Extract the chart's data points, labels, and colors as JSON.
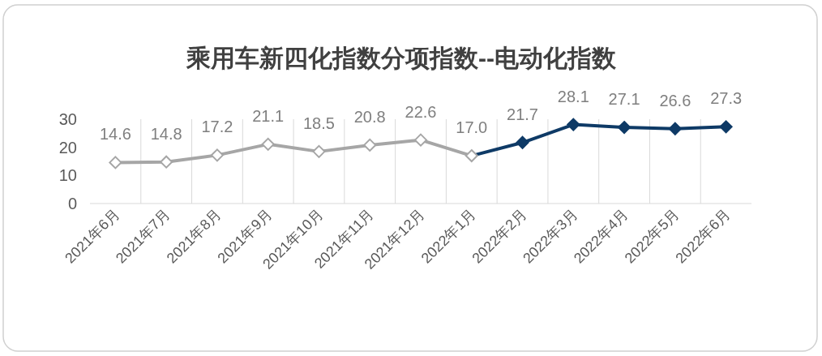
{
  "chart_data": {
    "type": "line",
    "title": "乘用车新四化指数分项指数--电动化指数",
    "categories": [
      "2021年6月",
      "2021年7月",
      "2021年8月",
      "2021年9月",
      "2021年10月",
      "2021年11月",
      "2021年12月",
      "2022年1月",
      "2022年2月",
      "2022年3月",
      "2022年4月",
      "2022年5月",
      "2022年6月"
    ],
    "series": [
      {
        "color": "#a6a6a6",
        "values": [
          14.6,
          14.8,
          17.2,
          21.1,
          18.5,
          20.8,
          22.6,
          17.0,
          null,
          null,
          null,
          null,
          null
        ],
        "value_labels": [
          "14.6",
          "14.8",
          "17.2",
          "21.1",
          "18.5",
          "20.8",
          "22.6",
          "17.0",
          null,
          null,
          null,
          null,
          null
        ]
      },
      {
        "color": "#0e3a66",
        "values": [
          null,
          null,
          null,
          null,
          null,
          null,
          null,
          17.0,
          21.7,
          28.1,
          27.1,
          26.6,
          27.3
        ],
        "value_labels": [
          null,
          null,
          null,
          null,
          null,
          null,
          null,
          null,
          "21.7",
          "28.1",
          "27.1",
          "26.6",
          "27.3"
        ]
      }
    ],
    "ylim": [
      0,
      30
    ],
    "yticks": [
      0,
      10,
      20,
      30
    ],
    "grid": "x",
    "marker": "diamond"
  }
}
